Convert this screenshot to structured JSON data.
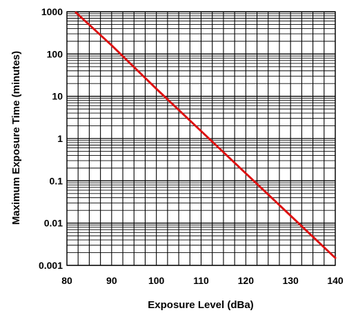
{
  "chart_data": {
    "type": "line",
    "title": "",
    "xlabel": "Exposure Level (dBa)",
    "ylabel": "Maximum Exposure Time (minutes)",
    "xlim": [
      80,
      140
    ],
    "ylim": [
      0.001,
      1000
    ],
    "y_scale": "log",
    "grid": true,
    "x_ticks": [
      "80",
      "90",
      "100",
      "110",
      "120",
      "130",
      "140"
    ],
    "y_ticks": [
      "0.001",
      "0.01",
      "0.1",
      "1",
      "10",
      "100",
      "1000"
    ],
    "series": [
      {
        "color": "#dd1111",
        "x": [
          82,
          90,
          100,
          110,
          120,
          130,
          140
        ],
        "y": [
          960,
          160,
          15,
          1.5,
          0.15,
          0.015,
          0.0015
        ]
      }
    ]
  }
}
